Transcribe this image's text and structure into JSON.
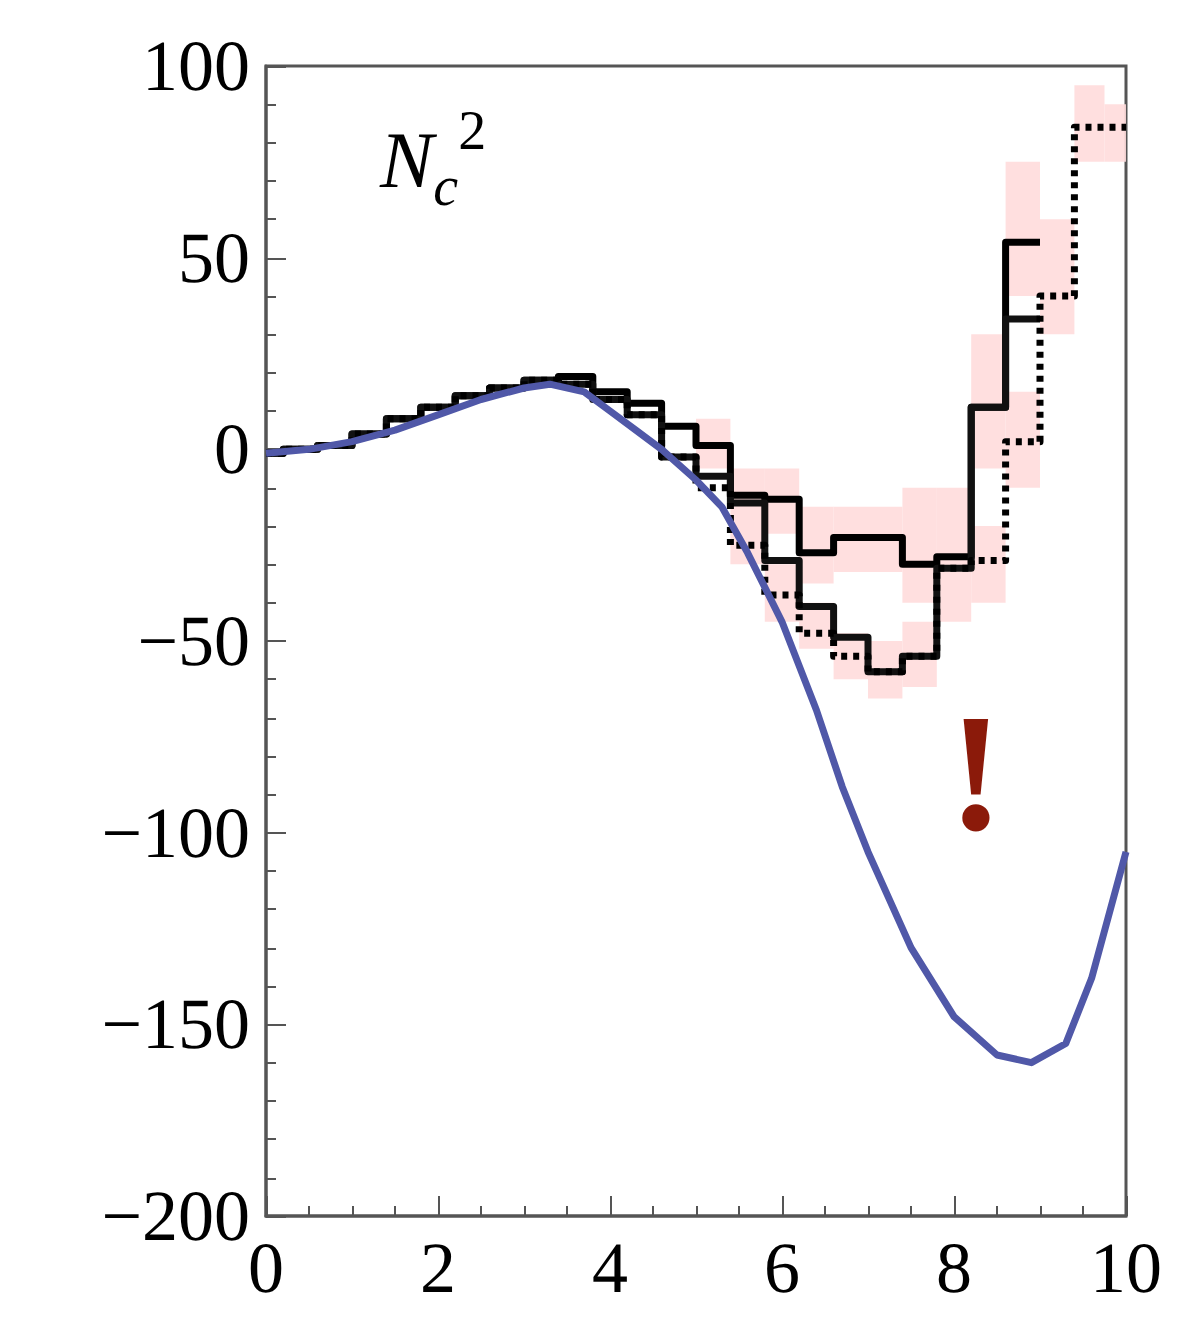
{
  "chart_data": {
    "type": "histogram",
    "bins": [
      0,
      0.2,
      0.6,
      1.0,
      1.4,
      1.8,
      2.2,
      2.6,
      3.0,
      3.4,
      3.8,
      4.2,
      4.6,
      5.0,
      5.4,
      5.8,
      6.2,
      6.6,
      7.0,
      7.4,
      7.8,
      8.2,
      8.6,
      9.0,
      9.4,
      9.8,
      10
    ],
    "series": [
      {
        "type": "bar",
        "color": "#ffdcdc",
        "x": [
          5.2,
          5.6,
          6.0,
          6.4,
          6.8,
          7.2,
          7.6,
          8.0,
          8.4,
          8.8
        ],
        "base": [
          -5,
          -20,
          -22,
          -35,
          -32,
          -32,
          -40,
          -45,
          -5,
          40
        ],
        "values": [
          13,
          15,
          17,
          20,
          17,
          17,
          30,
          35,
          35,
          35
        ]
      },
      {
        "type": "bar",
        "color": "#ffdcdc",
        "x": [
          5.6,
          6.0,
          6.4,
          6.8,
          7.2,
          7.6,
          8.4,
          8.8,
          9.2,
          9.6,
          9.9
        ],
        "base": [
          -30,
          -45,
          -52,
          -60,
          -65,
          -62,
          -40,
          -10,
          30,
          75,
          75
        ],
        "values": [
          10,
          15,
          12,
          12,
          15,
          17,
          20,
          25,
          30,
          20,
          15
        ]
      },
      {
        "color": "#000000",
        "line_style": "solid",
        "bins": [
          0,
          0.2,
          0.6,
          1.0,
          1.4,
          1.8,
          2.2,
          2.6,
          3.0,
          3.4,
          3.8,
          4.2,
          4.6,
          5.0,
          5.4,
          5.8,
          6.2,
          6.6,
          7.0,
          7.4,
          7.8,
          8.2,
          8.6,
          9.0
        ],
        "values": [
          -1,
          0,
          1,
          4,
          8,
          11,
          14,
          16,
          18,
          19,
          15,
          12,
          6,
          1,
          -12,
          -13,
          -27,
          -23,
          -23,
          -30,
          -28,
          11,
          54
        ]
      },
      {
        "color": "#111111",
        "line_style": "solid",
        "bins": [
          0,
          0.2,
          0.6,
          1.0,
          1.4,
          1.8,
          2.2,
          2.6,
          3.0,
          3.4,
          3.8,
          4.2,
          4.6,
          5.0,
          5.4,
          5.8,
          6.2,
          6.6,
          7.0,
          7.4,
          7.8,
          8.2,
          8.6,
          9.0
        ],
        "values": [
          -1,
          0,
          1,
          4,
          8,
          11,
          14,
          16,
          18,
          17,
          13,
          9,
          -2,
          -7,
          -14,
          -29,
          -41,
          -49,
          -58,
          -54,
          -31,
          11,
          34
        ]
      },
      {
        "color": "#000000",
        "line_style": "dotted",
        "values": [
          -1,
          0,
          1,
          4,
          8,
          11,
          14,
          16,
          18,
          17,
          13,
          9,
          -2,
          -10,
          -25,
          -38,
          -48,
          -54,
          -58,
          -54,
          -31,
          -29,
          2,
          40,
          84,
          84
        ]
      },
      {
        "type": "line",
        "color": "#5058a8",
        "line_style": "solid",
        "x": [
          0,
          0.5,
          1,
          1.5,
          2,
          2.5,
          3,
          3.3,
          3.7,
          4,
          4.3,
          4.6,
          5,
          5.3,
          5.6,
          6,
          6.4,
          6.7,
          7,
          7.5,
          8,
          8.5,
          8.9,
          9.3,
          9.6,
          10
        ],
        "values": [
          -1,
          0,
          2,
          5,
          9,
          13,
          16,
          17,
          15,
          10,
          5,
          0,
          -8,
          -15,
          -27,
          -45,
          -68,
          -88,
          -105,
          -130,
          -148,
          -158,
          -160,
          -155,
          -138,
          -105
        ]
      }
    ],
    "xlim": [
      0,
      10
    ],
    "xticks": [
      0,
      2,
      4,
      6,
      8,
      10
    ],
    "ylim": [
      -200,
      100
    ],
    "yticks": [
      -200,
      -150,
      -100,
      -50,
      0,
      50,
      100
    ],
    "grid": false,
    "marker": "none",
    "annotations": [
      "N$_{c}$$^{2}$",
      "!"
    ]
  }
}
